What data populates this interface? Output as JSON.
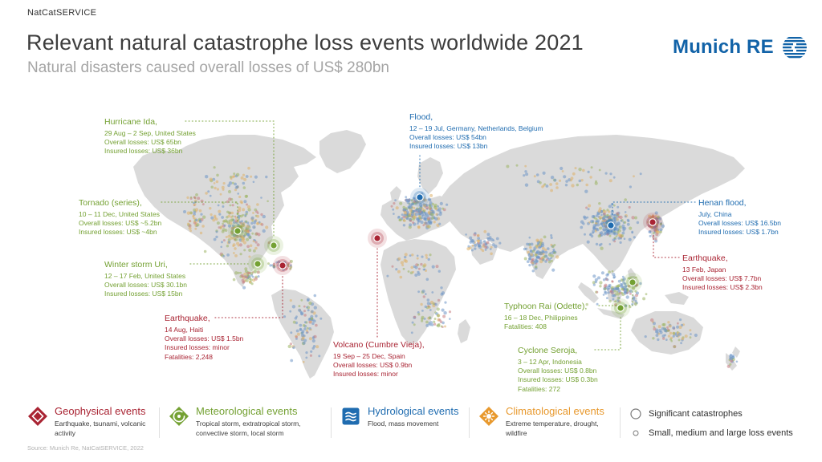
{
  "meta": {
    "brand_small": "NatCatSERVICE",
    "source": "Source: Munich Re, NatCatSERVICE, 2022"
  },
  "header": {
    "title": "Relevant natural catastrophe loss events worldwide 2021",
    "subtitle": "Natural disasters caused overall losses of US$ 280bn",
    "logo": "Munich RE"
  },
  "colors": {
    "geophysical": "#a92433",
    "meteorological": "#74a133",
    "hydrological": "#1f6cb0",
    "climatological": "#e8992e"
  },
  "events": [
    {
      "id": "hurricane-ida",
      "type": "meteorological",
      "title": "Hurricane Ida,",
      "lines": [
        "29 Aug – 2 Sep, United States",
        "Overall losses: US$ 65bn",
        "Insured losses: US$ 36bn"
      ]
    },
    {
      "id": "flood-europe",
      "type": "hydrological",
      "title": "Flood,",
      "lines": [
        "12 – 19 Jul, Germany, Netherlands, Belgium",
        "Overall losses: US$ 54bn",
        "Insured losses: US$ 13bn"
      ]
    },
    {
      "id": "tornado-series",
      "type": "meteorological",
      "title": "Tornado (series),",
      "lines": [
        "10 – 11 Dec, United States",
        "Overall losses: US$ ~5.2bn",
        "Insured losses: US$ ~4bn"
      ]
    },
    {
      "id": "winter-storm-uri",
      "type": "meteorological",
      "title": "Winter storm Uri,",
      "lines": [
        "12 – 17 Feb, United States",
        "Overall losses: US$ 30.1bn",
        "Insured losses: US$ 15bn"
      ]
    },
    {
      "id": "earthquake-haiti",
      "type": "geophysical",
      "title": "Earthquake,",
      "lines": [
        "14 Aug, Haiti",
        "Overall losses: US$ 1.5bn",
        "Insured losses: minor",
        "Fatalities: 2,248"
      ]
    },
    {
      "id": "volcano-cumbre-vieja",
      "type": "geophysical",
      "title": "Volcano (Cumbre Vieja),",
      "lines": [
        "19 Sep – 25 Dec, Spain",
        "Overall losses: US$ 0.9bn",
        "Insured losses: minor"
      ]
    },
    {
      "id": "henan-flood",
      "type": "hydrological",
      "title": "Henan flood,",
      "lines": [
        "July, China",
        "Overall losses: US$ 16.5bn",
        "Insured losses: US$ 1.7bn"
      ]
    },
    {
      "id": "earthquake-japan",
      "type": "geophysical",
      "title": "Earthquake,",
      "lines": [
        "13 Feb, Japan",
        "Overall losses: US$ 7.7bn",
        "Insured losses: US$ 2.3bn"
      ]
    },
    {
      "id": "typhoon-rai",
      "type": "meteorological",
      "title": "Typhoon Rai (Odette),",
      "lines": [
        "16 – 18 Dec, Philippines",
        "Fatalities: 408"
      ]
    },
    {
      "id": "cyclone-seroja",
      "type": "meteorological",
      "title": "Cyclone Seroja,",
      "lines": [
        "3 – 12 Apr, Indonesia",
        "Overall losses: US$ 0.8bn",
        "Insured losses: US$ 0.3bn",
        "Fatalities: 272"
      ]
    }
  ],
  "legend": {
    "items": [
      {
        "id": "geophysical",
        "label": "Geophysical events",
        "desc": "Earthquake, tsunami, volcanic activity"
      },
      {
        "id": "meteorological",
        "label": "Meteorological events",
        "desc": "Tropical storm, extratropical storm, convective storm, local storm"
      },
      {
        "id": "hydrological",
        "label": "Hydrological events",
        "desc": "Flood, mass movement"
      },
      {
        "id": "climatological",
        "label": "Climatological events",
        "desc": "Extreme temperature, drought, wildfire"
      }
    ],
    "size_markers": [
      {
        "label": "Significant catastrophes"
      },
      {
        "label": "Small, medium and large loss events"
      }
    ]
  }
}
